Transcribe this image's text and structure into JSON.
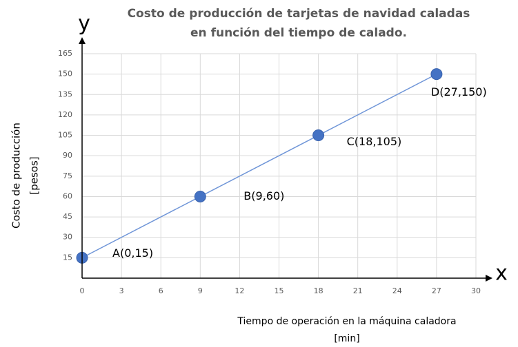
{
  "chart_data": {
    "type": "line",
    "title": [
      "Costo de producción de tarjetas de navidad caladas",
      "en función del tiempo de calado."
    ],
    "x_axis_letter": "x",
    "y_axis_letter": "y",
    "xlabel": [
      "Tiempo de operación en la máquina caladora",
      "[min]"
    ],
    "ylabel": [
      "Costo de producción",
      "[pesos]"
    ],
    "x": [
      0,
      9,
      18,
      27
    ],
    "series": [
      {
        "color": "#4472c4",
        "values": [
          15,
          60,
          105,
          150
        ],
        "value_labels": [
          "A(0,15)",
          "B(9,60)",
          "C(18,105)",
          "D(27,150)"
        ]
      }
    ],
    "xlim": [
      0,
      30
    ],
    "xticks": [
      0,
      3,
      6,
      9,
      12,
      15,
      18,
      21,
      24,
      27,
      30
    ],
    "ylim": [
      0,
      165
    ],
    "yticks": [
      15,
      30,
      45,
      60,
      75,
      90,
      105,
      120,
      135,
      150,
      165
    ],
    "grid": true
  }
}
